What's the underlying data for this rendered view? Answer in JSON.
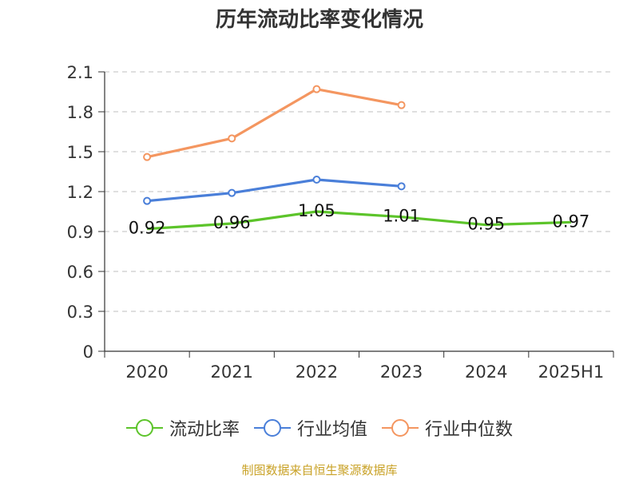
{
  "title": "历年流动比率变化情况",
  "source": "制图数据来自恒生聚源数据库",
  "chart_data": {
    "type": "line",
    "categories": [
      "2020",
      "2021",
      "2022",
      "2023",
      "2024",
      "2025H1"
    ],
    "ylim": [
      0,
      2.1
    ],
    "yticks": [
      "0",
      "0.3",
      "0.6",
      "0.9",
      "1.2",
      "1.5",
      "1.8",
      "2.1"
    ],
    "grid": true,
    "legend_position": "bottom",
    "series": [
      {
        "name": "流动比率",
        "color": "#5cc42a",
        "values": [
          0.92,
          0.96,
          1.05,
          1.01,
          0.95,
          0.97
        ],
        "labels": [
          "0.92",
          "0.96",
          "1.05",
          "1.01",
          "0.95",
          "0.97"
        ]
      },
      {
        "name": "行业均值",
        "color": "#4a7fd9",
        "values": [
          1.13,
          1.19,
          1.29,
          1.24,
          null,
          null
        ]
      },
      {
        "name": "行业中位数",
        "color": "#f49660",
        "values": [
          1.46,
          1.6,
          1.97,
          1.85,
          null,
          null
        ]
      }
    ]
  }
}
